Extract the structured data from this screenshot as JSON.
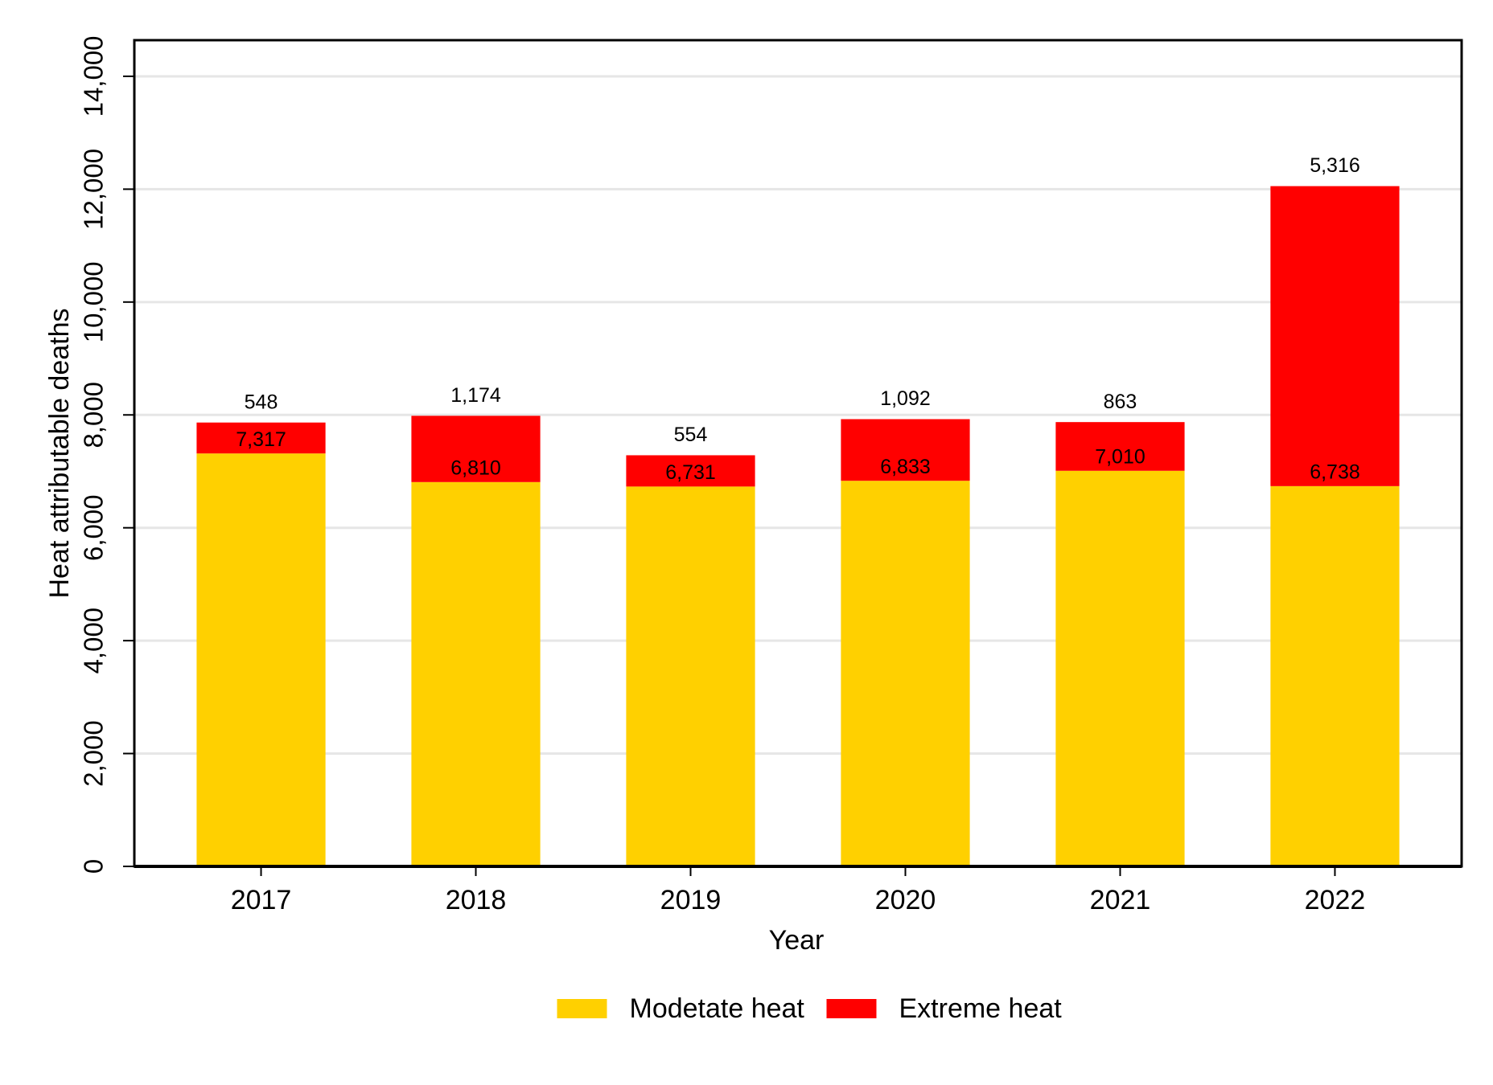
{
  "chart_data": {
    "type": "stacked_bar",
    "x_label": "Year",
    "y_label": "Heat attributable deaths",
    "categories": [
      "2017",
      "2018",
      "2019",
      "2020",
      "2021",
      "2022"
    ],
    "series": [
      {
        "name": "Modetate heat",
        "color": "#ffd000",
        "values": [
          7317,
          6810,
          6731,
          6833,
          7010,
          6738
        ],
        "value_labels": [
          "7,317",
          "6,810",
          "6,731",
          "6,833",
          "7,010",
          "6,738"
        ]
      },
      {
        "name": "Extreme heat",
        "color": "#ff0000",
        "values": [
          548,
          1174,
          554,
          1092,
          863,
          5316
        ],
        "value_labels": [
          "548",
          "1,174",
          "554",
          "1,092",
          "863",
          "5,316"
        ]
      }
    ],
    "ylim": [
      0,
      14640
    ],
    "yticks": [
      0,
      {
        "value": 2000,
        "label": "2,000"
      },
      {
        "value": 4000,
        "label": "4,000"
      },
      {
        "value": 6000,
        "label": "6,000"
      },
      {
        "value": 8000,
        "label": "8,000"
      },
      {
        "value": 10000,
        "label": "10,000"
      },
      {
        "value": 12000,
        "label": "12,000"
      },
      {
        "value": 14000,
        "label": "14,000"
      }
    ],
    "grid": true,
    "legend": "bottom"
  }
}
